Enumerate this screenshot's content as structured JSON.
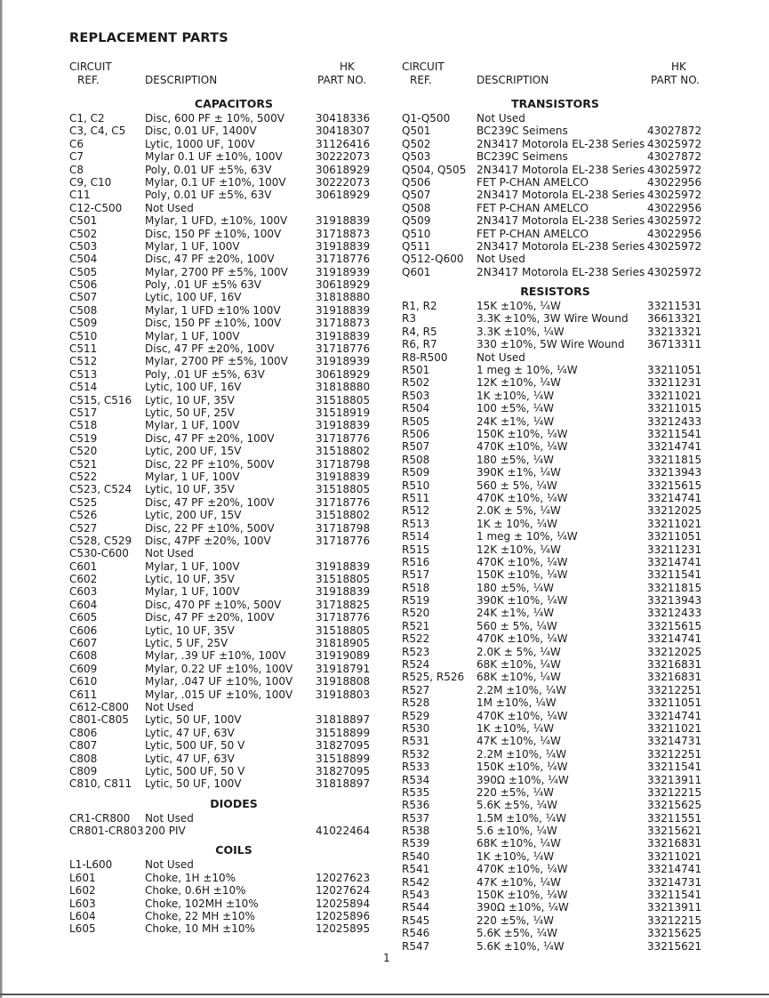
{
  "title": "REPLACEMENT PARTS",
  "headers": {
    "circuit": "CIRCUIT",
    "ref": "REF.",
    "description": "DESCRIPTION",
    "hk": "HK",
    "part_no": "PART NO."
  },
  "page_number": "1",
  "left_sections": [
    {
      "title": "CAPACITORS",
      "rows": [
        [
          "C1, C2",
          "Disc, 600 PF ± 10%, 500V",
          "30418336"
        ],
        [
          "C3, C4, C5",
          "Disc, 0.01 UF, 1400V",
          "30418307"
        ],
        [
          "C6",
          "Lytic, 1000 UF, 100V",
          "31126416"
        ],
        [
          "C7",
          "Mylar 0.1 UF ±10%, 100V",
          "30222073"
        ],
        [
          "C8",
          "Poly, 0.01 UF ±5%, 63V",
          "30618929"
        ],
        [
          "C9, C10",
          "Mylar, 0.1 UF ±10%, 100V",
          "30222073"
        ],
        [
          "C11",
          "Poly, 0.01 UF ±5%, 63V",
          "30618929"
        ],
        [
          "C12-C500",
          "Not Used",
          ""
        ],
        [
          "C501",
          "Mylar, 1 UFD, ±10%, 100V",
          "31918839"
        ],
        [
          "C502",
          "Disc, 150 PF ±10%, 100V",
          "31718873"
        ],
        [
          "C503",
          "Mylar, 1 UF, 100V",
          "31918839"
        ],
        [
          "C504",
          "Disc, 47 PF ±20%, 100V",
          "31718776"
        ],
        [
          "C505",
          "Mylar, 2700 PF ±5%, 100V",
          "31918939"
        ],
        [
          "C506",
          "Poly, .01 UF ±5% 63V",
          "30618929"
        ],
        [
          "C507",
          "Lytic, 100 UF, 16V",
          "31818880"
        ],
        [
          "C508",
          "Mylar, 1 UFD ±10% 100V",
          "31918839"
        ],
        [
          "C509",
          "Disc, 150 PF ±10%, 100V",
          "31718873"
        ],
        [
          "C510",
          "Mylar, 1 UF, 100V",
          "31918839"
        ],
        [
          "C511",
          "Disc, 47 PF ±20%, 100V",
          "31718776"
        ],
        [
          "C512",
          "Mylar, 2700 PF ±5%, 100V",
          "31918939"
        ],
        [
          "C513",
          "Poly, .01 UF ±5%, 63V",
          "30618929"
        ],
        [
          "C514",
          "Lytic, 100 UF, 16V",
          "31818880"
        ],
        [
          "C515, C516",
          "Lytic, 10 UF, 35V",
          "31518805"
        ],
        [
          "C517",
          "Lytic, 50 UF, 25V",
          "31518919"
        ],
        [
          "C518",
          "Mylar, 1 UF, 100V",
          "31918839"
        ],
        [
          "C519",
          "Disc, 47 PF ±20%, 100V",
          "31718776"
        ],
        [
          "C520",
          "Lytic, 200 UF, 15V",
          "31518802"
        ],
        [
          "C521",
          "Disc, 22 PF ±10%, 500V",
          "31718798"
        ],
        [
          "C522",
          "Mylar, 1 UF, 100V",
          "31918839"
        ],
        [
          "C523, C524",
          "Lytic, 10 UF, 35V",
          "31518805"
        ],
        [
          "C525",
          "Disc, 47 PF ±20%, 100V",
          "31718776"
        ],
        [
          "C526",
          "Lytic, 200 UF, 15V",
          "31518802"
        ],
        [
          "C527",
          "Disc, 22 PF ±10%, 500V",
          "31718798"
        ],
        [
          "C528, C529",
          "Disc, 47PF ±20%, 100V",
          "31718776"
        ],
        [
          "C530-C600",
          "Not Used",
          ""
        ],
        [
          "C601",
          "Mylar, 1 UF, 100V",
          "31918839"
        ],
        [
          "C602",
          "Lytic, 10 UF, 35V",
          "31518805"
        ],
        [
          "C603",
          "Mylar, 1 UF, 100V",
          "31918839"
        ],
        [
          "C604",
          "Disc, 470 PF ±10%, 500V",
          "31718825"
        ],
        [
          "C605",
          "Disc, 47 PF ±20%, 100V",
          "31718776"
        ],
        [
          "C606",
          "Lytic, 10 UF, 35V",
          "31518805"
        ],
        [
          "C607",
          "Lytic, 5 UF, 25V",
          "31818905"
        ],
        [
          "C608",
          "Mylar, .39 UF ±10%, 100V",
          "31919089"
        ],
        [
          "C609",
          "Mylar, 0.22 UF ±10%, 100V",
          "31918791"
        ],
        [
          "C610",
          "Mylar, .047 UF ±10%, 100V",
          "31918808"
        ],
        [
          "C611",
          "Mylar, .015 UF ±10%, 100V",
          "31918803"
        ],
        [
          "C612-C800",
          "Not Used",
          ""
        ],
        [
          "C801-C805",
          "Lytic, 50 UF, 100V",
          "31818897"
        ],
        [
          "C806",
          "Lytic, 47 UF, 63V",
          "31518899"
        ],
        [
          "C807",
          "Lytic, 500 UF, 50 V",
          "31827095"
        ],
        [
          "C808",
          "Lytic, 47 UF, 63V",
          "31518899"
        ],
        [
          "C809",
          "Lytic, 500 UF, 50 V",
          "31827095"
        ],
        [
          "C810, C811",
          "Lytic, 50 UF, 100V",
          "31818897"
        ]
      ]
    },
    {
      "title": "DIODES",
      "rows": [
        [
          "CR1-CR800",
          "Not Used",
          ""
        ],
        [
          "CR801-CR803",
          "200 PIV",
          "41022464"
        ]
      ]
    },
    {
      "title": "COILS",
      "rows": [
        [
          "L1-L600",
          "Not Used",
          ""
        ],
        [
          "L601",
          "Choke, 1H ±10%",
          "12027623"
        ],
        [
          "L602",
          "Choke, 0.6H ±10%",
          "12027624"
        ],
        [
          "L603",
          "Choke, 102MH ±10%",
          "12025894"
        ],
        [
          "L604",
          "Choke, 22 MH ±10%",
          "12025896"
        ],
        [
          "L605",
          "Choke, 10 MH ±10%",
          "12025895"
        ]
      ]
    }
  ],
  "right_sections": [
    {
      "title": "TRANSISTORS",
      "rows": [
        [
          "Q1-Q500",
          "Not Used",
          ""
        ],
        [
          "Q501",
          "BC239C Seimens",
          "43027872"
        ],
        [
          "Q502",
          "2N3417 Motorola EL-238 Series",
          "43025972"
        ],
        [
          "Q503",
          "BC239C Seimens",
          "43027872"
        ],
        [
          "Q504, Q505",
          "2N3417 Motorola EL-238 Series",
          "43025972"
        ],
        [
          "Q506",
          "FET P-CHAN AMELCO",
          "43022956"
        ],
        [
          "Q507",
          "2N3417 Motorola EL-238 Series",
          "43025972"
        ],
        [
          "Q508",
          "FET P-CHAN AMELCO",
          "43022956"
        ],
        [
          "Q509",
          "2N3417 Motorola EL-238 Series",
          "43025972"
        ],
        [
          "Q510",
          "FET P-CHAN AMELCO",
          "43022956"
        ],
        [
          "Q511",
          "2N3417 Motorola EL-238 Series",
          "43025972"
        ],
        [
          "Q512-Q600",
          "Not Used",
          ""
        ],
        [
          "Q601",
          "2N3417 Motorola EL-238 Series",
          "43025972"
        ]
      ]
    },
    {
      "title": "RESISTORS",
      "rows": [
        [
          "R1, R2",
          "15K ±10%, ¼W",
          "33211531"
        ],
        [
          "R3",
          "3.3K ±10%, 3W Wire Wound",
          "36613321"
        ],
        [
          "R4, R5",
          "3.3K ±10%, ¼W",
          "33213321"
        ],
        [
          "R6, R7",
          "330 ±10%, 5W Wire Wound",
          "36713311"
        ],
        [
          "R8-R500",
          "Not Used",
          ""
        ],
        [
          "R501",
          "1 meg ± 10%, ¼W",
          "33211051"
        ],
        [
          "R502",
          "12K ±10%, ¼W",
          "33211231"
        ],
        [
          "R503",
          "1K ±10%, ¼W",
          "33211021"
        ],
        [
          "R504",
          "100 ±5%, ¼W",
          "33211015"
        ],
        [
          "R505",
          "24K ±1%, ¼W",
          "33212433"
        ],
        [
          "R506",
          "150K ±10%, ¼W",
          "33211541"
        ],
        [
          "R507",
          "470K ±10%, ¼W",
          "33214741"
        ],
        [
          "R508",
          "180 ±5%, ¼W",
          "33211815"
        ],
        [
          "R509",
          "390K ±1%, ¼W",
          "33213943"
        ],
        [
          "R510",
          "560 ± 5%, ¼W",
          "33215615"
        ],
        [
          "R511",
          "470K ±10%, ¼W",
          "33214741"
        ],
        [
          "R512",
          "2.0K ± 5%, ¼W",
          "33212025"
        ],
        [
          "R513",
          "1K ± 10%, ¼W",
          "33211021"
        ],
        [
          "R514",
          "1 meg ± 10%, ¼W",
          "33211051"
        ],
        [
          "R515",
          "12K ±10%, ¼W",
          "33211231"
        ],
        [
          "R516",
          "470K ±10%, ¼W",
          "33214741"
        ],
        [
          "R517",
          "150K ±10%, ¼W",
          "33211541"
        ],
        [
          "R518",
          "180 ±5%, ¼W",
          "33211815"
        ],
        [
          "R519",
          "390K ±10%, ¼W",
          "33213943"
        ],
        [
          "R520",
          "24K ±1%, ¼W",
          "33212433"
        ],
        [
          "R521",
          "560 ± 5%, ¼W",
          "33215615"
        ],
        [
          "R522",
          "470K ±10%, ¼W",
          "33214741"
        ],
        [
          "R523",
          "2.0K ± 5%, ¼W",
          "33212025"
        ],
        [
          "R524",
          "68K ±10%, ¼W",
          "33216831"
        ],
        [
          "R525, R526",
          "68K ±10%, ¼W",
          "33216831"
        ],
        [
          "R527",
          "2.2M ±10%, ¼W",
          "33212251"
        ],
        [
          "R528",
          "1M ±10%, ¼W",
          "33211051"
        ],
        [
          "R529",
          "470K ±10%, ¼W",
          "33214741"
        ],
        [
          "R530",
          "1K ±10%, ¼W",
          "33211021"
        ],
        [
          "R531",
          "47K ±10%, ¼W",
          "33214731"
        ],
        [
          "R532",
          "2.2M ±10%, ¼W",
          "33212251"
        ],
        [
          "R533",
          "150K ±10%, ¼W",
          "33211541"
        ],
        [
          "R534",
          "390Ω ±10%, ¼W",
          "33213911"
        ],
        [
          "R535",
          "220 ±5%, ¼W",
          "33212215"
        ],
        [
          "R536",
          "5.6K ±5%, ¼W",
          "33215625"
        ],
        [
          "R537",
          "1.5M ±10%, ¼W",
          "33211551"
        ],
        [
          "R538",
          "5.6 ±10%, ¼W",
          "33215621"
        ],
        [
          "R539",
          "68K ±10%, ¼W",
          "33216831"
        ],
        [
          "R540",
          "1K ±10%, ¼W",
          "33211021"
        ],
        [
          "R541",
          "470K ±10%, ¼W",
          "33214741"
        ],
        [
          "R542",
          "47K ±10%, ¼W",
          "33214731"
        ],
        [
          "R543",
          "150K ±10%, ¼W",
          "33211541"
        ],
        [
          "R544",
          "390Ω ±10%, ¼W",
          "33213911"
        ],
        [
          "R545",
          "220 ±5%, ¼W",
          "33212215"
        ],
        [
          "R546",
          "5.6K ±5%, ¼W",
          "33215625"
        ],
        [
          "R547",
          "5.6K ±10%, ¼W",
          "33215621"
        ]
      ]
    }
  ]
}
